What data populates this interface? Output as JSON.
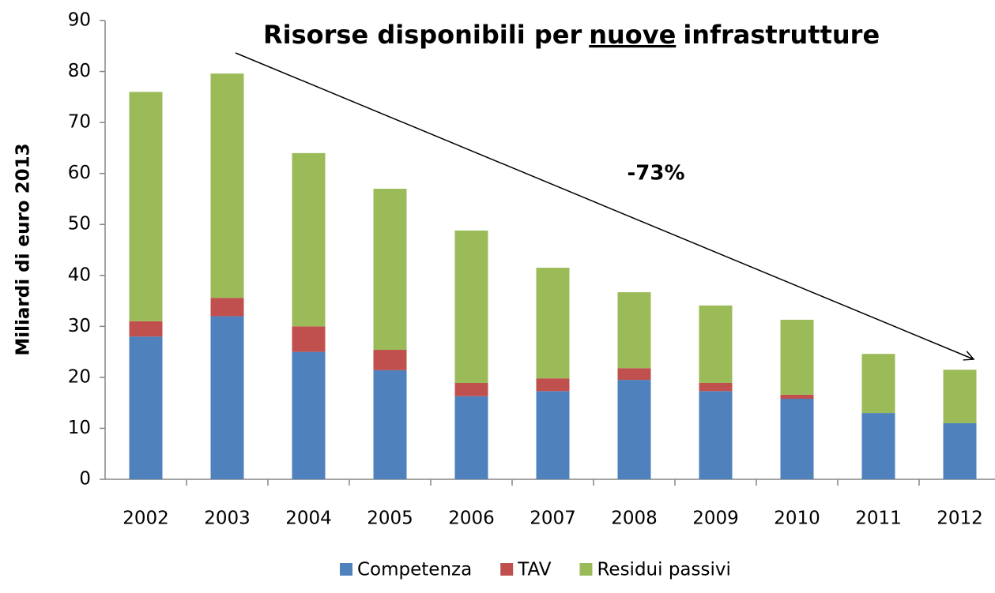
{
  "chart_data": {
    "type": "stacked_bar",
    "title_parts": [
      "Risorse disponibili per",
      "nuove",
      "infrastrutture"
    ],
    "y_label": "Miliardi di euro 2013",
    "annotation": "-73%",
    "categories": [
      "2002",
      "2003",
      "2004",
      "2005",
      "2006",
      "2007",
      "2008",
      "2009",
      "2010",
      "2011",
      "2012"
    ],
    "series": [
      {
        "name": "Competenza",
        "color": "#4f81bd",
        "values": [
          28,
          32,
          25,
          21.4,
          16.3,
          17.3,
          19.5,
          17.3,
          15.8,
          13,
          11
        ]
      },
      {
        "name": "TAV",
        "color": "#c0504d",
        "values": [
          3,
          3.6,
          5,
          4,
          2.6,
          2.5,
          2.3,
          1.6,
          0.8,
          0,
          0
        ]
      },
      {
        "name": "Residui passivi",
        "color": "#9bbb59",
        "values": [
          45,
          44,
          34,
          31.6,
          29.9,
          21.7,
          14.9,
          15.2,
          14.7,
          11.6,
          10.5
        ]
      }
    ],
    "ylim": [
      0,
      90
    ],
    "yticks": [
      0,
      10,
      20,
      30,
      40,
      50,
      60,
      70,
      80,
      90
    ],
    "grid": false
  }
}
